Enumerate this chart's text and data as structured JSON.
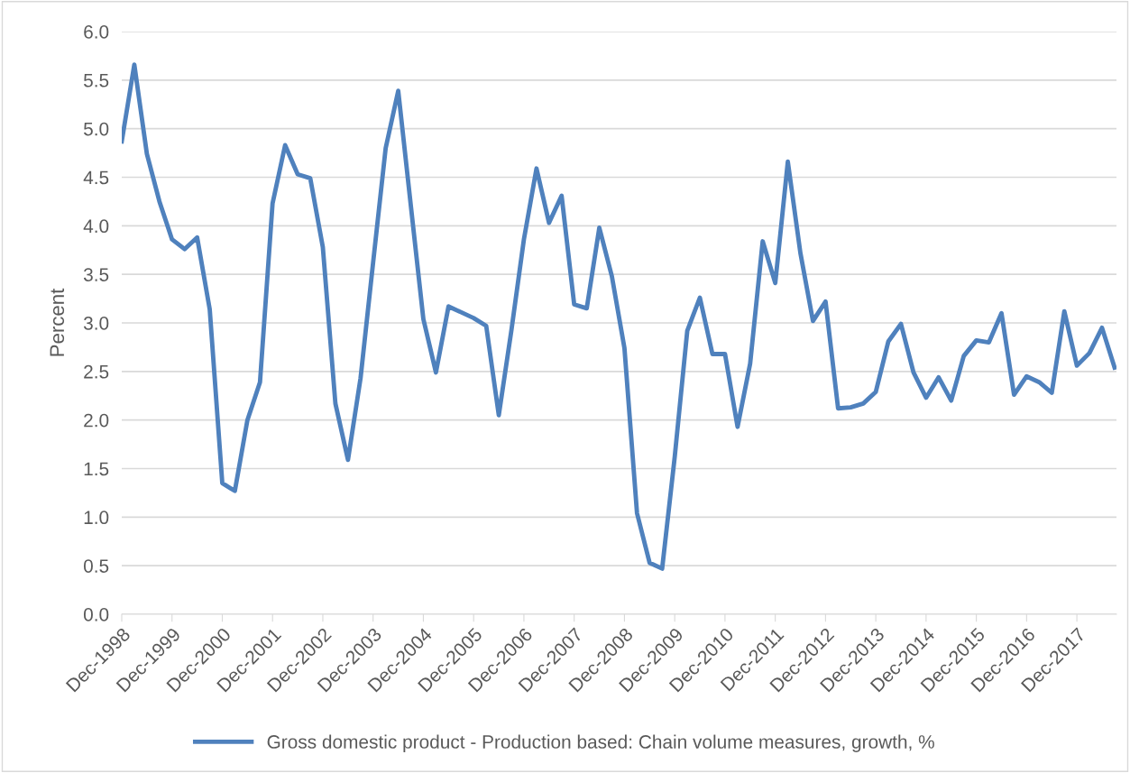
{
  "chart_data": {
    "type": "line",
    "ylabel": "Percent",
    "categories": [
      "Dec-1998",
      null,
      null,
      null,
      "Dec-1999",
      null,
      null,
      null,
      "Dec-2000",
      null,
      null,
      null,
      "Dec-2001",
      null,
      null,
      null,
      "Dec-2002",
      null,
      null,
      null,
      "Dec-2003",
      null,
      null,
      null,
      "Dec-2004",
      null,
      null,
      null,
      "Dec-2005",
      null,
      null,
      null,
      "Dec-2006",
      null,
      null,
      null,
      "Dec-2007",
      null,
      null,
      null,
      "Dec-2008",
      null,
      null,
      null,
      "Dec-2009",
      null,
      null,
      null,
      "Dec-2010",
      null,
      null,
      null,
      "Dec-2011",
      null,
      null,
      null,
      "Dec-2012",
      null,
      null,
      null,
      "Dec-2013",
      null,
      null,
      null,
      "Dec-2014",
      null,
      null,
      null,
      "Dec-2015",
      null,
      null,
      null,
      "Dec-2016",
      null,
      null,
      null,
      "Dec-2017",
      null,
      null,
      null
    ],
    "series": [
      {
        "name": "Gross domestic product - Production based: Chain volume measures, growth, %",
        "color": "#4f81bd",
        "values": [
          4.87,
          5.66,
          4.74,
          4.25,
          3.86,
          3.76,
          3.88,
          3.14,
          1.35,
          1.27,
          2.0,
          2.39,
          4.23,
          4.83,
          4.53,
          4.49,
          3.78,
          2.17,
          1.59,
          2.43,
          3.62,
          4.8,
          5.39,
          4.21,
          3.04,
          2.49,
          3.17,
          3.11,
          3.05,
          2.97,
          2.05,
          2.92,
          3.86,
          4.59,
          4.03,
          4.31,
          3.19,
          3.15,
          3.98,
          3.48,
          2.74,
          1.04,
          0.53,
          0.47,
          1.62,
          2.92,
          3.26,
          2.68,
          2.68,
          1.93,
          2.58,
          3.84,
          3.41,
          4.66,
          3.72,
          3.02,
          3.22,
          2.12,
          2.13,
          2.17,
          2.29,
          2.81,
          2.99,
          2.49,
          2.23,
          2.44,
          2.2,
          2.66,
          2.82,
          2.8,
          3.1,
          2.26,
          2.45,
          2.39,
          2.28,
          3.12,
          2.56,
          2.69,
          2.95,
          2.54
        ]
      }
    ],
    "ylim": [
      0,
      6
    ],
    "yticks": [
      {
        "value": 0,
        "label": "0.0"
      },
      0.5,
      {
        "value": 1,
        "label": "1.0"
      },
      1.5,
      {
        "value": 2,
        "label": "2.0"
      },
      2.5,
      {
        "value": 3,
        "label": "3.0"
      },
      3.5,
      {
        "value": 4,
        "label": "4.0"
      },
      4.5,
      {
        "value": 5,
        "label": "5.0"
      },
      5.5,
      {
        "value": 6,
        "label": "6.0"
      }
    ],
    "grid": "y",
    "legend": "bottom",
    "marker": "none",
    "line_style": "solid"
  }
}
